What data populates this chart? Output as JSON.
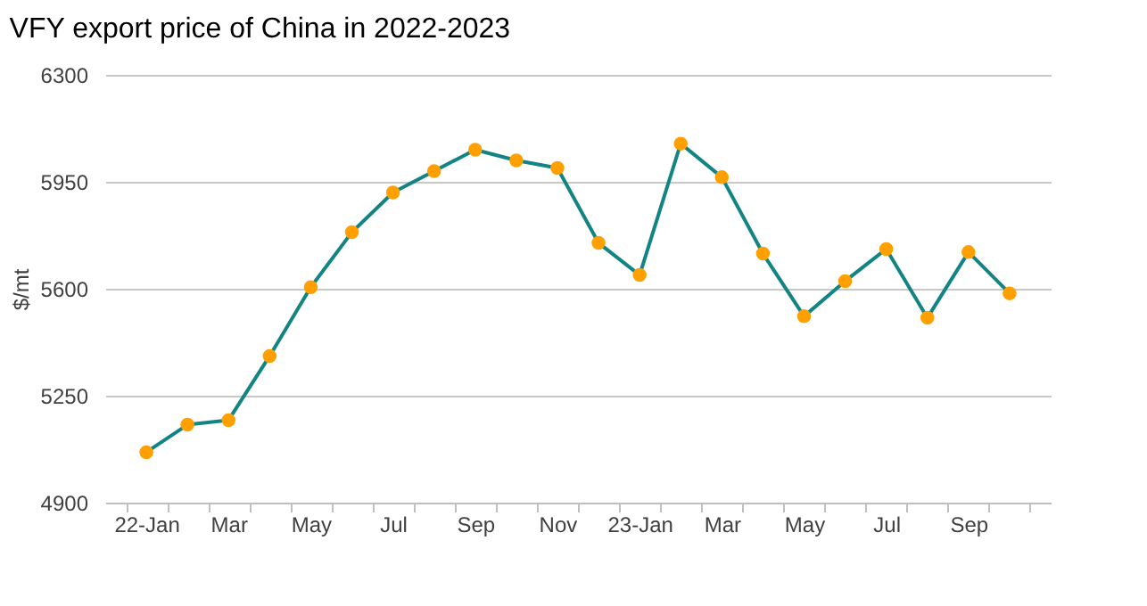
{
  "chart_data": {
    "type": "line",
    "title": "VFY export price of China in 2022-2023",
    "ylabel": "$/mt",
    "categories": [
      "22-Jan",
      null,
      "Mar",
      null,
      "May",
      null,
      "Jul",
      null,
      "Sep",
      null,
      "Nov",
      null,
      "23-Jan",
      null,
      "Mar",
      null,
      "May",
      null,
      "Jul",
      null,
      "Sep",
      null
    ],
    "series": [
      {
        "color": "#138484",
        "values": [
          5065,
          5155,
          5170,
          5380,
          5605,
          5785,
          5915,
          5985,
          6055,
          6020,
          5995,
          5750,
          5645,
          6075,
          5965,
          5715,
          5510,
          5625,
          5730,
          5505,
          5720,
          5585
        ]
      },
      {
        "type": "scatter",
        "marker": "circle",
        "color": "#ffa000",
        "values": [
          5065,
          5155,
          5170,
          5380,
          5605,
          5785,
          5915,
          5985,
          6055,
          6020,
          5995,
          5750,
          5645,
          6075,
          5965,
          5715,
          5510,
          5625,
          5730,
          5505,
          5720,
          5585
        ]
      }
    ],
    "ylim": [
      4900,
      6300
    ],
    "yticks": [
      4900,
      5250,
      5600,
      5950,
      6300
    ],
    "grid": "y",
    "line_style": "solid"
  }
}
